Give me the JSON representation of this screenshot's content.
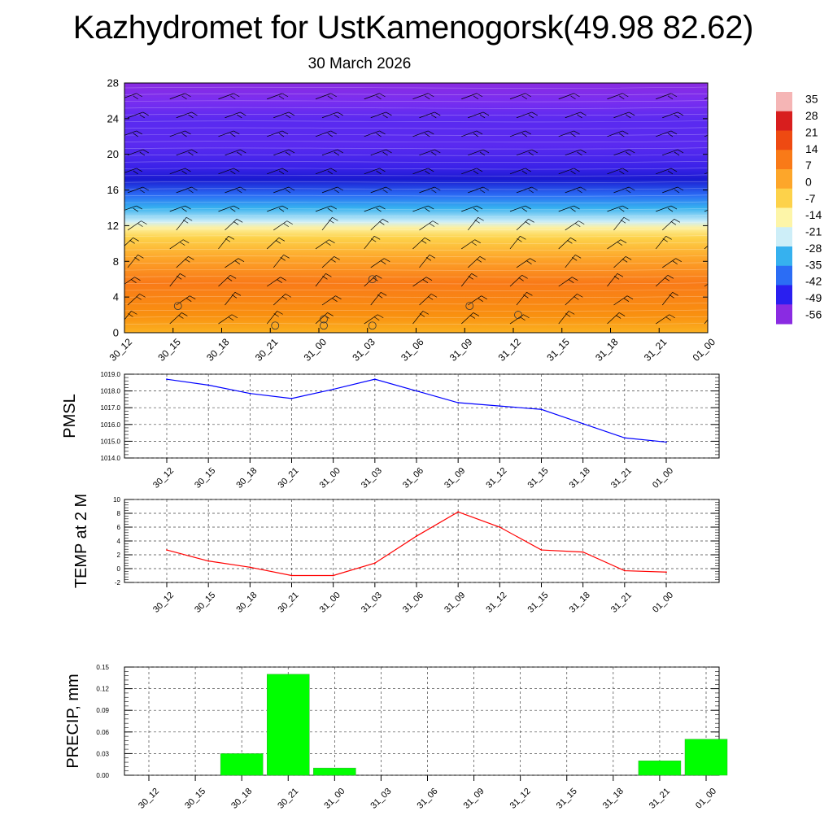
{
  "header": {
    "title": "Kazhydromet for UstKamenogorsk(49.98 82.62)",
    "subtitle": "30 March 2026"
  },
  "colors": {
    "pmsl_line": "#0000ff",
    "temp_line": "#ff0000",
    "precip_bar": "#00ff00",
    "wind_barb": "#000000",
    "contour": "#ffffff"
  },
  "chart_data": [
    {
      "type": "heatmap",
      "name": "cross-section",
      "title": "",
      "xlabel": "",
      "ylabel": "",
      "categories": [
        "30_12",
        "30_15",
        "30_18",
        "30_21",
        "31_00",
        "31_03",
        "31_06",
        "31_09",
        "31_12",
        "31_15",
        "31_18",
        "31_21",
        "01_00"
      ],
      "ylim": [
        0,
        28
      ],
      "y_ticks": [
        0,
        4,
        8,
        12,
        16,
        20,
        24,
        28
      ],
      "colorbar": {
        "labels": [
          "35",
          "28",
          "21",
          "14",
          "7",
          "0",
          "-7",
          "-14",
          "-21",
          "-28",
          "-35",
          "-42",
          "-49",
          "-56"
        ],
        "range": [
          -60,
          38
        ],
        "colors": [
          "#8a2be2",
          "#2a1ff0",
          "#2b6df5",
          "#36b1ef",
          "#cdeef8",
          "#fdf5a8",
          "#fdd24a",
          "#fda62a",
          "#f97a18",
          "#ee4a12",
          "#d81e1e",
          "#f5b5b5"
        ]
      }
    },
    {
      "type": "line",
      "name": "pmsl",
      "ylabel": "PMSL",
      "categories": [
        "30_12",
        "30_15",
        "30_18",
        "30_21",
        "31_00",
        "31_03",
        "31_06",
        "31_09",
        "31_12",
        "31_15",
        "31_18",
        "31_21",
        "01_00"
      ],
      "values": [
        1018.7,
        1018.35,
        1017.85,
        1017.55,
        1018.1,
        1018.7,
        1018.0,
        1017.3,
        1017.1,
        1016.9,
        1016.05,
        1015.2,
        1014.95
      ],
      "ylim": [
        1014.0,
        1019.0
      ],
      "y_ticks": [
        "1014.0",
        "1015.0",
        "1016.0",
        "1017.0",
        "1018.0",
        "1019.0"
      ]
    },
    {
      "type": "line",
      "name": "temp",
      "ylabel": "TEMP at 2 M",
      "categories": [
        "30_12",
        "30_15",
        "30_18",
        "30_21",
        "31_00",
        "31_03",
        "31_06",
        "31_09",
        "31_12",
        "31_15",
        "31_18",
        "31_21",
        "01_00"
      ],
      "values": [
        2.7,
        1.1,
        0.2,
        -1.0,
        -1.0,
        0.8,
        4.7,
        8.2,
        6.0,
        2.7,
        2.4,
        -0.3,
        -0.5
      ],
      "ylim": [
        -2,
        10
      ],
      "y_ticks": [
        "-2",
        "0",
        "2",
        "4",
        "6",
        "8",
        "10"
      ]
    },
    {
      "type": "bar",
      "name": "precip",
      "ylabel": "PRECIP, mm",
      "categories": [
        "30_12",
        "30_15",
        "30_18",
        "30_21",
        "31_00",
        "31_03",
        "31_06",
        "31_09",
        "31_12",
        "31_15",
        "31_18",
        "31_21",
        "01_00"
      ],
      "values": [
        0,
        0,
        0.03,
        0.14,
        0.01,
        0,
        0,
        0,
        0,
        0,
        0,
        0.02,
        0.05
      ],
      "ylim": [
        0,
        0.15
      ],
      "y_ticks": [
        "0.00",
        "0.03",
        "0.06",
        "0.09",
        "0.12",
        "0.15"
      ]
    }
  ]
}
